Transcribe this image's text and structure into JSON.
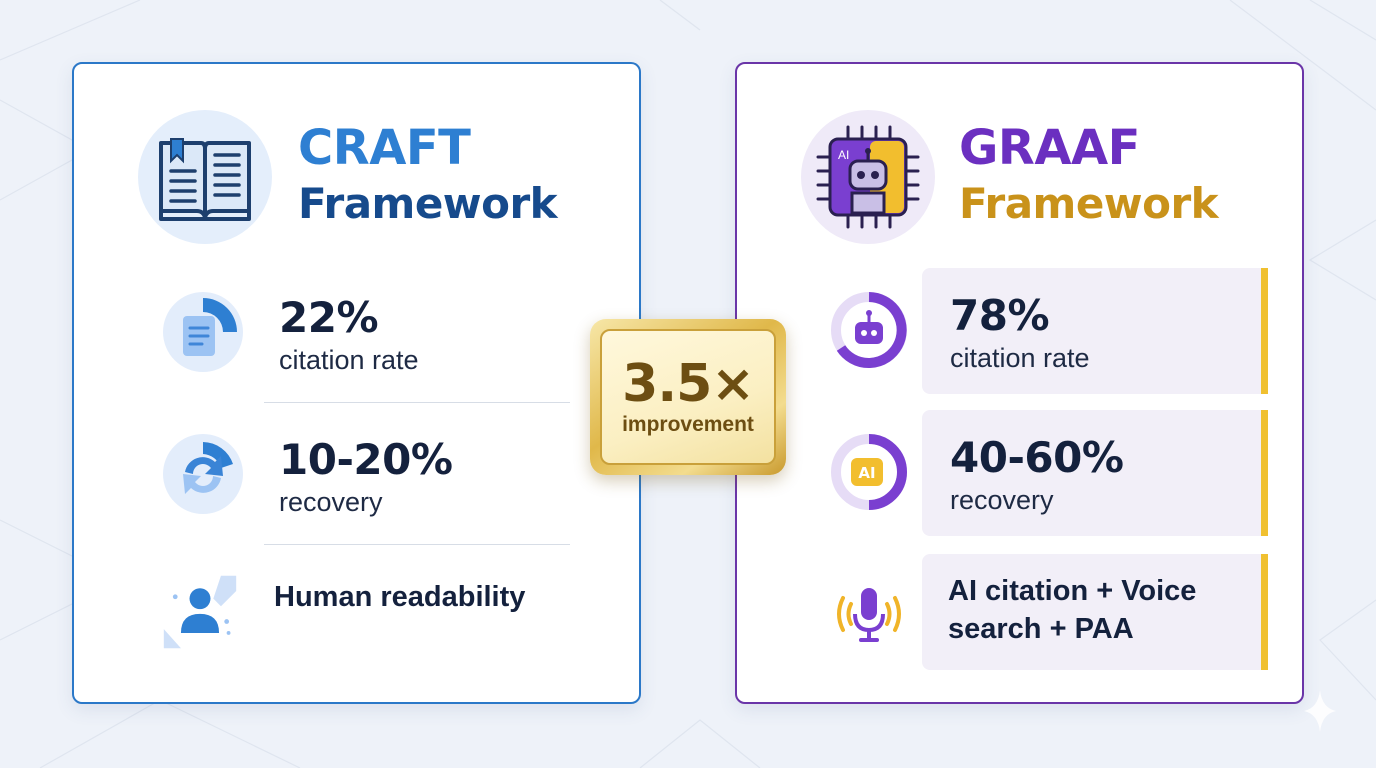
{
  "craft": {
    "title": "CRAFT",
    "subtitle": "Framework",
    "icon": "open-book-icon",
    "metrics": [
      {
        "value": "22%",
        "label": "citation rate",
        "icon": "document-icon"
      },
      {
        "value": "10-20%",
        "label": "recovery",
        "icon": "recovery-arrows-icon"
      },
      {
        "text": "Human readability",
        "icon": "person-icon"
      }
    ]
  },
  "graaf": {
    "title": "GRAAF",
    "subtitle": "Framework",
    "icon": "ai-chip-robot-icon",
    "chip_text": "AI",
    "metrics": [
      {
        "value": "78%",
        "label": "citation rate",
        "icon": "robot-gauge-icon"
      },
      {
        "value": "40-60%",
        "label": "recovery",
        "icon": "ai-gauge-icon",
        "badge": "AI"
      },
      {
        "text": "AI citation + Voice search + PAA",
        "icon": "microphone-icon"
      }
    ]
  },
  "badge": {
    "value": "3.5×",
    "label": "improvement"
  },
  "colors": {
    "craft_accent": "#2b78c8",
    "graaf_accent": "#6a35a8",
    "gold": "#f0c030"
  }
}
